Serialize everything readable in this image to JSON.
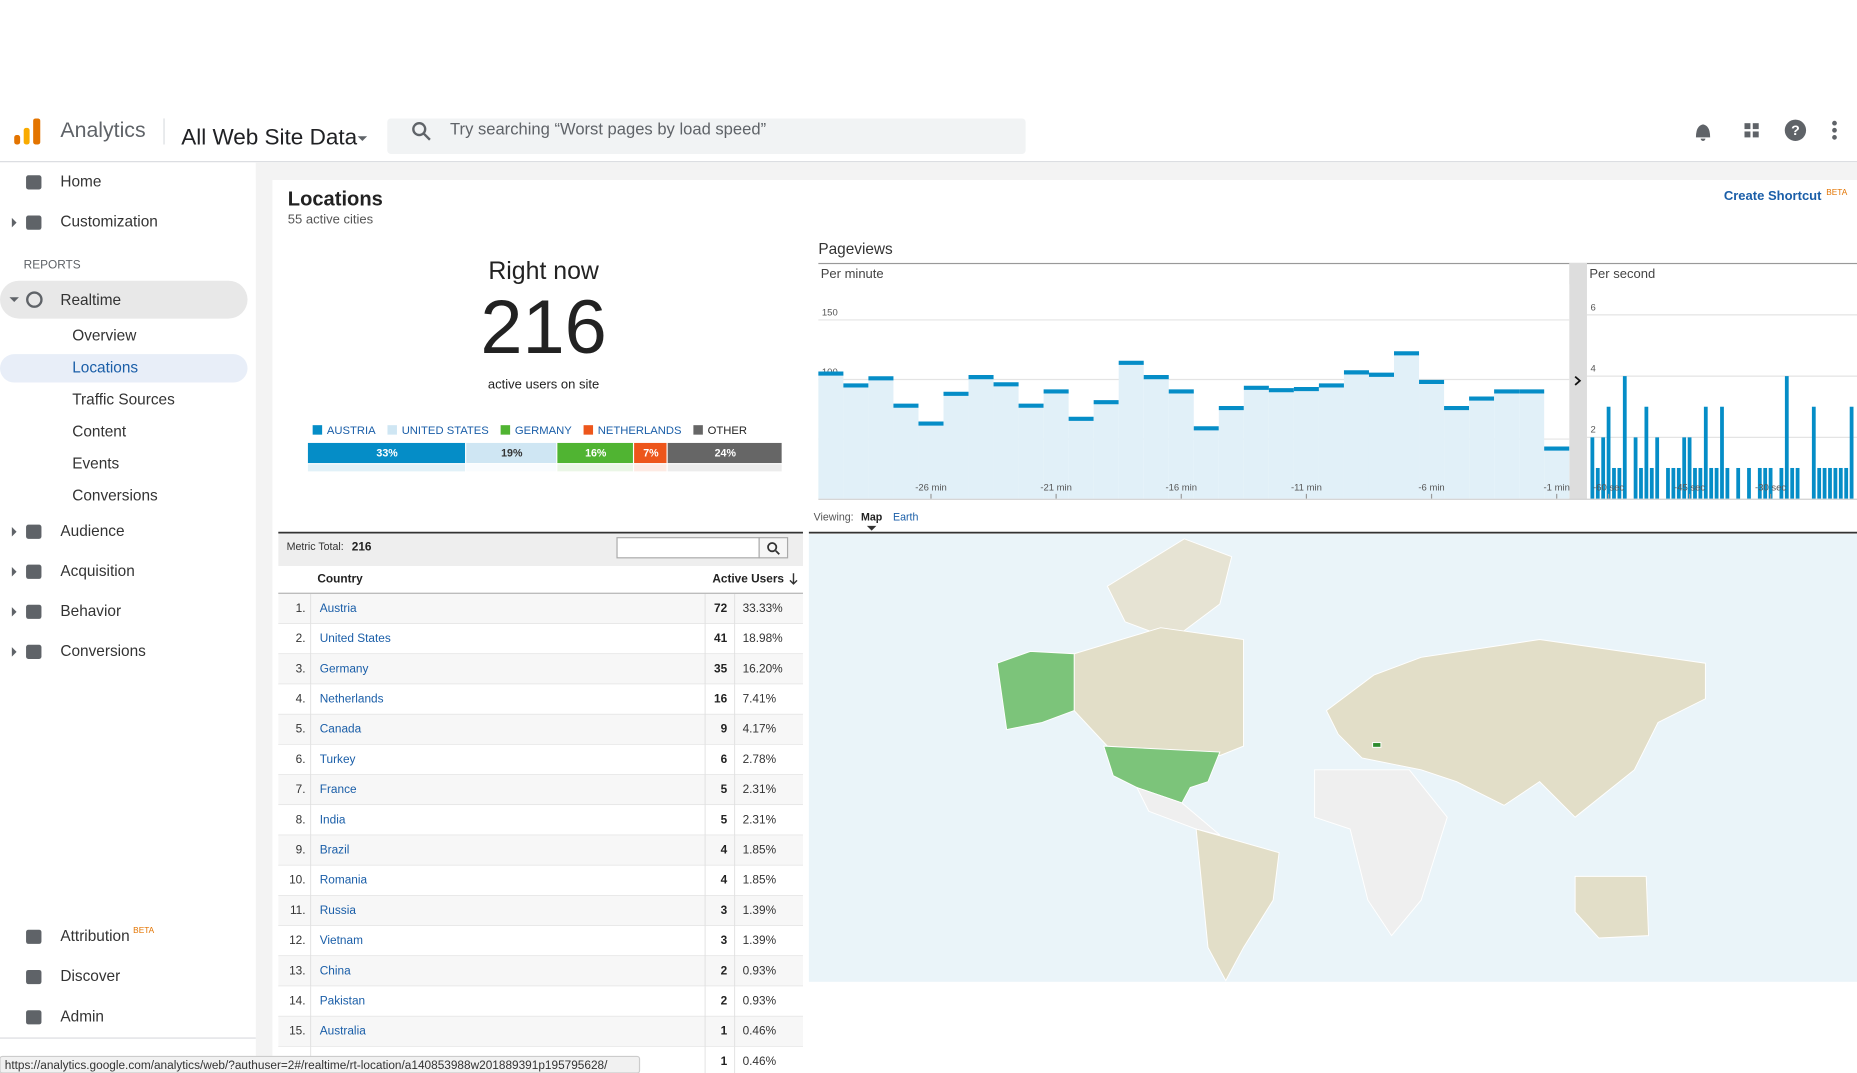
{
  "header": {
    "app": "Analytics",
    "property": "All Web Site Data",
    "search_placeholder": "Try searching “Worst pages by load speed”"
  },
  "sidebar": {
    "top": [
      "Home",
      "Customization"
    ],
    "section": "REPORTS",
    "realtime": "Realtime",
    "realtime_items": [
      "Overview",
      "Locations",
      "Traffic Sources",
      "Content",
      "Events",
      "Conversions"
    ],
    "selected_item": 1,
    "groups": [
      "Audience",
      "Acquisition",
      "Behavior",
      "Conversions"
    ],
    "bottom": [
      {
        "label": "Attribution",
        "badge": "BETA"
      },
      {
        "label": "Discover"
      },
      {
        "label": "Admin"
      }
    ]
  },
  "page": {
    "title": "Locations",
    "subtitle": "55 active cities",
    "shortcut": "Create Shortcut",
    "shortcut_badge": "BETA"
  },
  "right_now": {
    "title": "Right now",
    "value": 216,
    "caption": "active users on site",
    "breakdown": {
      "type": "stacked-bar",
      "series": [
        {
          "name": "AUSTRIA",
          "color": "#058dc7",
          "value": 33,
          "value_label": "33%"
        },
        {
          "name": "UNITED STATES",
          "color": "#cfe6f3",
          "value": 19,
          "value_label": "19%"
        },
        {
          "name": "GERMANY",
          "color": "#50b432",
          "value": 16,
          "value_label": "16%"
        },
        {
          "name": "NETHERLANDS",
          "color": "#ed561b",
          "value": 7,
          "value_label": "7%"
        },
        {
          "name": "OTHER",
          "color": "#666666",
          "value": 24,
          "value_label": "24%"
        }
      ]
    }
  },
  "pageviews": {
    "title": "Pageviews",
    "per_minute": {
      "type": "bar",
      "title": "Per minute",
      "color": "#058dc7",
      "x": [
        -30,
        -29,
        -28,
        -27,
        -26,
        -25,
        -24,
        -23,
        -22,
        -21,
        -20,
        -19,
        -18,
        -17,
        -16,
        -15,
        -14,
        -13,
        -12,
        -11,
        -10,
        -9,
        -8,
        -7,
        -6,
        -5,
        -4,
        -3,
        -2,
        -1
      ],
      "values": [
        105,
        95,
        101,
        78,
        63,
        88,
        102,
        96,
        78,
        90,
        67,
        81,
        114,
        102,
        90,
        59,
        76,
        93,
        91,
        92,
        95,
        106,
        104,
        122,
        98,
        76,
        84,
        90,
        90,
        42
      ],
      "xlim": [
        -30.5,
        -0.5
      ],
      "ylim": [
        0,
        180
      ],
      "yticks": [
        50,
        100,
        150
      ],
      "xticks": [
        {
          "value": -26,
          "label": "-26 min"
        },
        {
          "value": -21,
          "label": "-21 min"
        },
        {
          "value": -16,
          "label": "-16 min"
        },
        {
          "value": -11,
          "label": "-11 min"
        },
        {
          "value": -6,
          "label": "-6 min"
        },
        {
          "value": -1,
          "label": "-1 min"
        }
      ]
    },
    "per_second": {
      "type": "bar",
      "title": "Per second",
      "color": "#058dc7",
      "x": [
        -63,
        -62,
        -61,
        -60,
        -59,
        -58,
        -57,
        -56,
        -55,
        -54,
        -53,
        -52,
        -51,
        -50,
        -49,
        -48,
        -47,
        -46,
        -45,
        -44,
        -43,
        -42,
        -41,
        -40,
        -39,
        -38,
        -37,
        -36,
        -35,
        -34,
        -33,
        -32,
        -31,
        -30,
        -29,
        -28,
        -27,
        -26,
        -25,
        -24,
        -23,
        -22,
        -21,
        -20,
        -19,
        -18,
        -17,
        -16,
        -15
      ],
      "values": [
        2,
        1,
        2,
        3,
        1,
        1,
        4,
        0,
        2,
        1,
        3,
        1,
        2,
        0,
        1,
        1,
        1,
        2,
        2,
        1,
        1,
        3,
        1,
        1,
        3,
        1,
        0,
        1,
        0,
        1,
        0,
        1,
        1,
        1,
        0,
        1,
        4,
        1,
        1,
        0,
        0,
        3,
        1,
        1,
        1,
        1,
        1,
        1,
        3
      ],
      "xlim": [
        -64,
        -14
      ],
      "ylim": [
        0,
        7
      ],
      "yticks": [
        2,
        4,
        6
      ],
      "xticks": [
        {
          "value": -60,
          "label": "-60 sec"
        },
        {
          "value": -45,
          "label": "-45 sec"
        },
        {
          "value": -30,
          "label": "-30 sec"
        }
      ]
    }
  },
  "viewing": {
    "label": "Viewing:",
    "options": [
      "Map",
      "Earth"
    ],
    "selected": 0
  },
  "table": {
    "metric_label": "Metric Total:",
    "metric_total": 216,
    "columns": [
      "Country",
      "Active Users"
    ],
    "rows": [
      [
        "1.",
        "Austria",
        72,
        "33.33%"
      ],
      [
        "2.",
        "United States",
        41,
        "18.98%"
      ],
      [
        "3.",
        "Germany",
        35,
        "16.20%"
      ],
      [
        "4.",
        "Netherlands",
        16,
        "7.41%"
      ],
      [
        "5.",
        "Canada",
        9,
        "4.17%"
      ],
      [
        "6.",
        "Turkey",
        6,
        "2.78%"
      ],
      [
        "7.",
        "France",
        5,
        "2.31%"
      ],
      [
        "8.",
        "India",
        5,
        "2.31%"
      ],
      [
        "9.",
        "Brazil",
        4,
        "1.85%"
      ],
      [
        "10.",
        "Romania",
        4,
        "1.85%"
      ],
      [
        "11.",
        "Russia",
        3,
        "1.39%"
      ],
      [
        "12.",
        "Vietnam",
        3,
        "1.39%"
      ],
      [
        "13.",
        "China",
        2,
        "0.93%"
      ],
      [
        "14.",
        "Pakistan",
        2,
        "0.93%"
      ],
      [
        "15.",
        "Australia",
        1,
        "0.46%"
      ],
      [
        null,
        null,
        1,
        "0.46%"
      ]
    ]
  },
  "status_bar": "https://analytics.google.com/analytics/web/?authuser=2#/realtime/rt-location/a140853988w201889391p195795628/"
}
